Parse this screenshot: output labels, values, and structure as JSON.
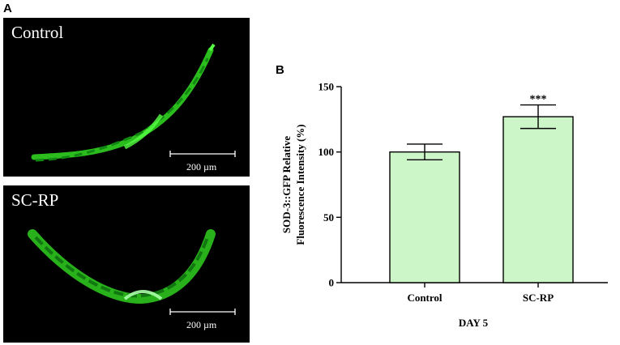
{
  "panels": {
    "a_letter": "A",
    "b_letter": "B",
    "top_image": {
      "label": "Control",
      "scale_text": "200 µm"
    },
    "bottom_image": {
      "label": "SC-RP",
      "scale_text": "200 µm"
    }
  },
  "colors": {
    "bar_fill": "#ccf5c8",
    "worm_glow": "#33dd22",
    "image_background": "#000000"
  },
  "chart_data": {
    "type": "bar",
    "categories": [
      "Control",
      "SC-RP"
    ],
    "values": [
      100,
      127
    ],
    "error": [
      6,
      9
    ],
    "significance": [
      "",
      "***"
    ],
    "title": "",
    "xlabel": "DAY 5",
    "ylabel_line1": "SOD-3::GFP Relative",
    "ylabel_line2": "Fluorescence Intensity (%)",
    "ylim": [
      0,
      150
    ],
    "yticks": [
      0,
      50,
      100,
      150
    ],
    "grid": false
  }
}
